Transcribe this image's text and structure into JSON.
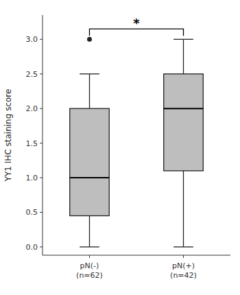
{
  "chart_data": {
    "type": "box",
    "ylabel": "YY1 IHC staining score",
    "categories": [
      "pN(-)\n(n=62)",
      "pN(+)\n(n=42)"
    ],
    "boxes": [
      {
        "whisker_low": 0.0,
        "q1": 0.45,
        "median": 1.0,
        "q3": 2.0,
        "whisker_high": 2.5,
        "outliers": [
          3.0
        ]
      },
      {
        "whisker_low": 0.0,
        "q1": 1.1,
        "median": 2.0,
        "q3": 2.5,
        "whisker_high": 3.0,
        "outliers": []
      }
    ],
    "color": "#BEBEBE",
    "ylim": [
      -0.12,
      3.35
    ],
    "yticks": [
      {
        "value": 0.0,
        "label": "0.0"
      },
      {
        "value": 0.5,
        "label": "0.5"
      },
      {
        "value": 1.0,
        "label": "1.0"
      },
      {
        "value": 1.5,
        "label": "1.5"
      },
      {
        "value": 2.0,
        "label": "2.0"
      },
      {
        "value": 2.5,
        "label": "2.5"
      },
      {
        "value": 3.0,
        "label": "3.0"
      }
    ],
    "annotations": [
      {
        "text": "*",
        "y": 3.15,
        "from": 0,
        "to": 1
      }
    ],
    "grid": false
  }
}
